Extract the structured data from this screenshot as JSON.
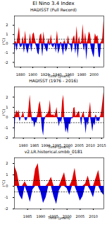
{
  "title": "El Nino 3.4 Index",
  "chart_data": [
    {
      "type": "area",
      "title": "HADISST (Full Record)",
      "x_label": "Time (years)",
      "y_label": "(°C)",
      "colors": [
        "#e00000",
        "#0000e0"
      ],
      "reference_lines": [
        0.5,
        -0.5
      ],
      "xlim": [
        1870,
        2016
      ],
      "xticks": [
        1880,
        1900,
        1920,
        1940,
        1960,
        1980,
        2000
      ],
      "ylim": [
        -2.5,
        3
      ],
      "yticks": [
        -2,
        -1,
        0,
        1,
        2
      ],
      "x": [
        1870,
        1872,
        1874,
        1876,
        1878,
        1880,
        1882,
        1884,
        1886,
        1888,
        1890,
        1892,
        1894,
        1896,
        1898,
        1900,
        1902,
        1904,
        1906,
        1908,
        1910,
        1912,
        1914,
        1916,
        1918,
        1920,
        1922,
        1924,
        1926,
        1928,
        1930,
        1932,
        1934,
        1936,
        1938,
        1940,
        1942,
        1944,
        1946,
        1948,
        1950,
        1952,
        1954,
        1956,
        1958,
        1960,
        1962,
        1964,
        1966,
        1968,
        1970,
        1972,
        1974,
        1976,
        1978,
        1980,
        1982,
        1984,
        1986,
        1988,
        1990,
        1992,
        1994,
        1996,
        1998,
        2000,
        2002,
        2004,
        2006,
        2008,
        2010,
        2012,
        2014,
        2016
      ],
      "values": [
        -1.2,
        0.3,
        -0.8,
        0.9,
        1.8,
        -0.4,
        -0.3,
        0.8,
        -1.0,
        1.4,
        -0.6,
        -1.1,
        -0.4,
        1.1,
        -0.9,
        1.0,
        1.2,
        0.4,
        -0.3,
        -1.0,
        -1.2,
        0.9,
        1.1,
        -1.4,
        1.3,
        -0.3,
        -0.7,
        -0.9,
        0.6,
        -0.2,
        1.0,
        -0.3,
        -0.4,
        0.1,
        -1.0,
        1.4,
        -1.1,
        -0.6,
        0.2,
        -0.5,
        -1.3,
        0.4,
        -0.9,
        -0.6,
        0.9,
        -0.1,
        -0.2,
        -1.0,
        0.6,
        0.9,
        -1.1,
        1.9,
        -1.6,
        0.8,
        -0.1,
        0.3,
        2.1,
        -0.8,
        1.2,
        -1.8,
        0.4,
        1.3,
        1.0,
        -0.6,
        -1.1,
        -1.5,
        1.1,
        0.7,
        0.9,
        -1.4,
        -1.5,
        0.2,
        0.6,
        2.5
      ]
    },
    {
      "type": "area",
      "title": "HADISST (1976 - 2016)",
      "x_label": "Time (years)",
      "y_label": "(°C)",
      "colors": [
        "#e00000",
        "#0000e0"
      ],
      "reference_lines": [
        0.5,
        -0.5
      ],
      "xlim": [
        1976,
        2016
      ],
      "xticks": [
        1980,
        1985,
        1990,
        1995,
        2000,
        2005,
        2010,
        2015
      ],
      "ylim": [
        -2,
        3
      ],
      "yticks": [
        -2,
        -1,
        0,
        1,
        2
      ],
      "x": [
        1976,
        1976.5,
        1977,
        1977.5,
        1978,
        1978.5,
        1979,
        1979.5,
        1980,
        1980.5,
        1981,
        1981.5,
        1982,
        1982.5,
        1983,
        1983.5,
        1984,
        1984.5,
        1985,
        1985.5,
        1986,
        1986.5,
        1987,
        1987.5,
        1988,
        1988.5,
        1989,
        1989.5,
        1990,
        1990.5,
        1991,
        1991.5,
        1992,
        1992.5,
        1993,
        1993.5,
        1994,
        1994.5,
        1995,
        1995.5,
        1996,
        1996.5,
        1997,
        1997.5,
        1998,
        1998.5,
        1999,
        1999.5,
        2000,
        2000.5,
        2001,
        2001.5,
        2002,
        2002.5,
        2003,
        2003.5,
        2004,
        2004.5,
        2005,
        2005.5,
        2006,
        2006.5,
        2007,
        2007.5,
        2008,
        2008.5,
        2009,
        2009.5,
        2010,
        2010.5,
        2011,
        2011.5,
        2012,
        2012.5,
        2013,
        2013.5,
        2014,
        2014.5,
        2015,
        2015.5,
        2016
      ],
      "values": [
        -1.5,
        0.3,
        0.7,
        0.4,
        0.7,
        -0.4,
        0.0,
        0.2,
        0.6,
        0.0,
        -0.3,
        -0.3,
        0.0,
        1.0,
        2.2,
        0.7,
        -0.4,
        -0.3,
        -1.0,
        -0.5,
        -0.5,
        0.4,
        1.2,
        1.6,
        0.7,
        -1.2,
        -1.8,
        -0.3,
        0.1,
        0.3,
        0.4,
        0.7,
        1.7,
        0.3,
        0.2,
        0.3,
        0.1,
        0.5,
        1.0,
        -0.2,
        -0.9,
        -0.3,
        -0.5,
        1.6,
        2.2,
        -0.5,
        -1.5,
        -1.0,
        -1.6,
        -0.6,
        -0.7,
        -0.1,
        -0.1,
        0.9,
        1.0,
        0.1,
        0.3,
        0.5,
        0.6,
        0.0,
        -0.8,
        0.3,
        0.6,
        -0.4,
        -1.6,
        -0.4,
        -0.8,
        0.6,
        1.5,
        -0.6,
        -1.4,
        -0.5,
        -0.8,
        0.3,
        -0.4,
        -0.3,
        -0.4,
        0.1,
        0.6,
        1.5,
        2.5
      ]
    },
    {
      "type": "area",
      "title": "v2.LR.historical.smbb_0181",
      "x_label": "Time (years)",
      "y_label": "(°C)",
      "colors": [
        "#e00000",
        "#0000e0"
      ],
      "reference_lines": [
        0.5,
        -0.5
      ],
      "xlim": [
        1980,
        2014
      ],
      "xticks": [
        1985,
        1990,
        1995,
        2000,
        2005,
        2010
      ],
      "ylim": [
        -2,
        2.5
      ],
      "yticks": [
        -2,
        -1,
        0,
        1,
        2
      ],
      "x": [
        1980,
        1981,
        1982,
        1983,
        1984,
        1985,
        1986,
        1987,
        1988,
        1989,
        1990,
        1991,
        1992,
        1993,
        1994,
        1995,
        1996,
        1997,
        1998,
        1999,
        2000,
        2001,
        2002,
        2003,
        2004,
        2005,
        2006,
        2007,
        2008,
        2009,
        2010,
        2011,
        2012,
        2013,
        2014
      ],
      "values": [
        1.8,
        1.2,
        -0.8,
        -1.2,
        0.4,
        -0.6,
        -1.4,
        -0.3,
        1.5,
        2.0,
        -0.5,
        -1.5,
        -1.0,
        0.3,
        0.8,
        -0.9,
        -1.6,
        -0.4,
        0.6,
        1.2,
        -0.2,
        -0.8,
        0.5,
        1.6,
        -0.6,
        -1.3,
        -0.9,
        0.2,
        0.9,
        -0.4,
        -1.0,
        0.7,
        1.4,
        -0.5,
        -0.8
      ]
    }
  ]
}
